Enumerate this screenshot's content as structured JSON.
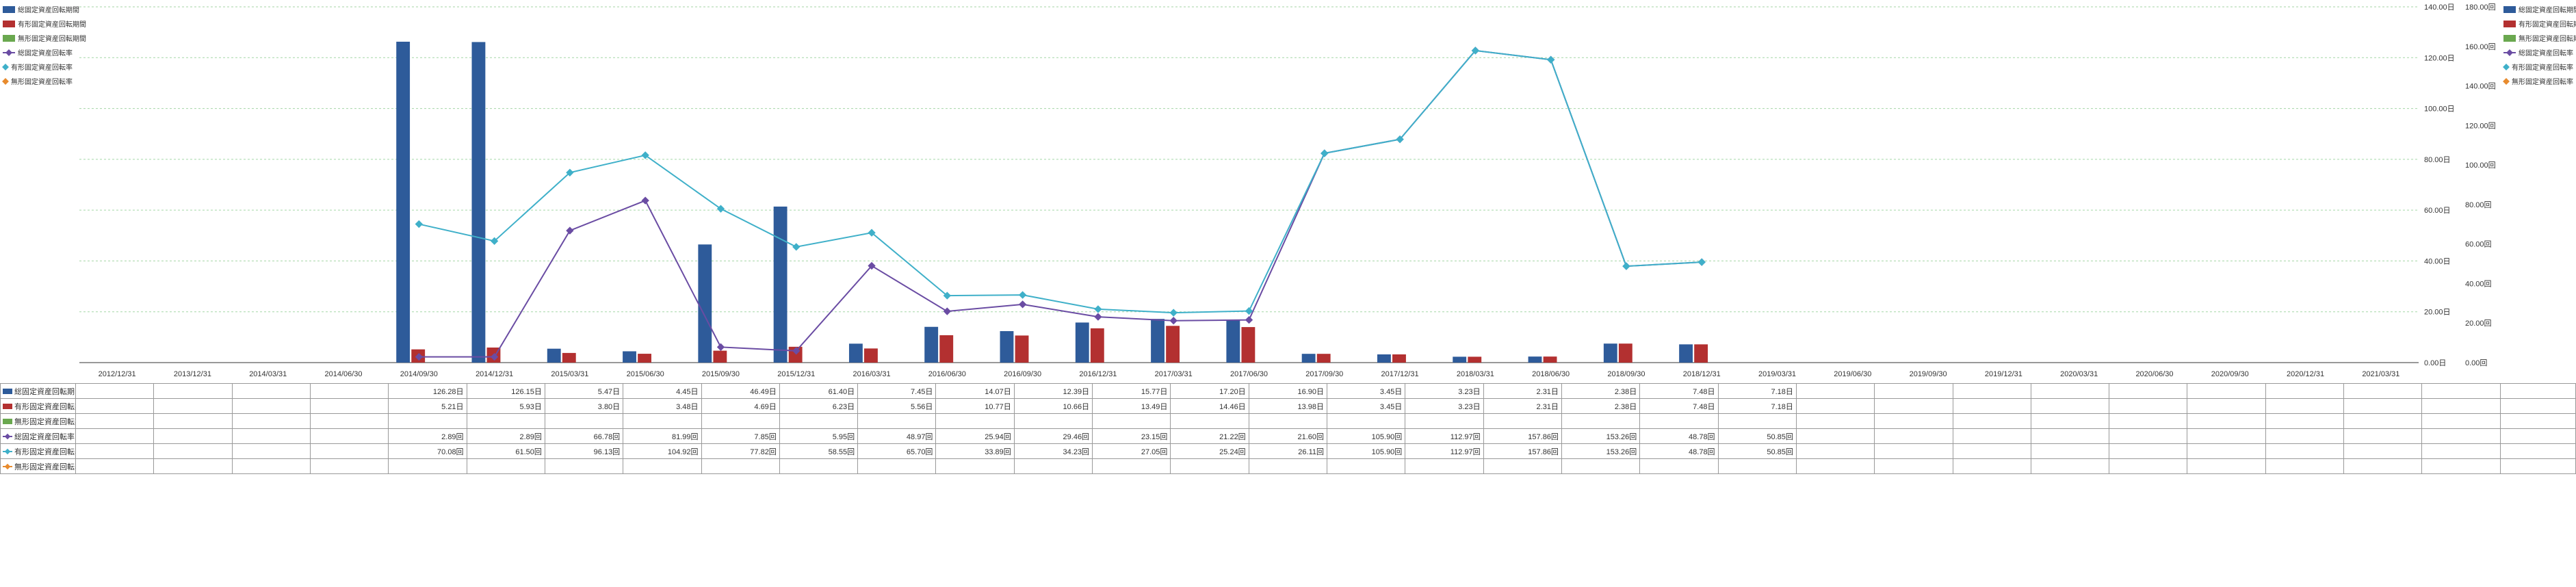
{
  "chart": {
    "type": "combo-bar-line",
    "background_color": "#ffffff",
    "grid_color": "#4caf50",
    "axis_color": "#333333",
    "categories": [
      "2012/12/31",
      "2013/12/31",
      "2014/03/31",
      "2014/06/30",
      "2014/09/30",
      "2014/12/31",
      "2015/03/31",
      "2015/06/30",
      "2015/09/30",
      "2015/12/31",
      "2016/03/31",
      "2016/06/30",
      "2016/09/30",
      "2016/12/31",
      "2017/03/31",
      "2017/06/30",
      "2017/09/30",
      "2017/12/31",
      "2018/03/31",
      "2018/06/30",
      "2018/09/30",
      "2018/12/31",
      "2019/03/31",
      "2019/06/30",
      "2019/09/30",
      "2019/12/31",
      "2020/03/31",
      "2020/06/30",
      "2020/09/30",
      "2020/12/31",
      "2021/03/31"
    ],
    "left_axis": {
      "label_suffix": "日",
      "min": 0,
      "max": 140,
      "step": 20
    },
    "right_axis": {
      "label_suffix": "回",
      "min": 0,
      "max": 180,
      "step": 20
    },
    "series": [
      {
        "key": "s1",
        "name": "総固定資産回転期間",
        "type": "bar",
        "color": "#2e5b9a",
        "axis": "left",
        "data": [
          null,
          null,
          null,
          null,
          126.28,
          126.15,
          5.47,
          4.45,
          46.49,
          61.4,
          7.45,
          14.07,
          12.39,
          15.77,
          17.2,
          16.9,
          3.45,
          3.23,
          2.31,
          2.38,
          7.48,
          7.18,
          null,
          null,
          null,
          null,
          null,
          null,
          null,
          null,
          null
        ]
      },
      {
        "key": "s2",
        "name": "有形固定資産回転期間",
        "type": "bar",
        "color": "#b33030",
        "axis": "left",
        "data": [
          null,
          null,
          null,
          null,
          5.21,
          5.93,
          3.8,
          3.48,
          4.69,
          6.23,
          5.56,
          10.77,
          10.66,
          13.49,
          14.46,
          13.98,
          3.45,
          3.23,
          2.31,
          2.38,
          7.48,
          7.18,
          null,
          null,
          null,
          null,
          null,
          null,
          null,
          null,
          null
        ]
      },
      {
        "key": "s3",
        "name": "無形固定資産回転期間",
        "type": "bar",
        "color": "#6aa84f",
        "axis": "left",
        "data": [
          null,
          null,
          null,
          null,
          null,
          null,
          null,
          null,
          null,
          null,
          null,
          null,
          null,
          null,
          null,
          null,
          null,
          null,
          null,
          null,
          null,
          null,
          null,
          null,
          null,
          null,
          null,
          null,
          null,
          null,
          null
        ]
      },
      {
        "key": "s4",
        "name": "総固定資産回転率",
        "type": "line",
        "color": "#6a4ca3",
        "marker": "diamond",
        "axis": "right",
        "data": [
          null,
          null,
          null,
          null,
          2.89,
          2.89,
          66.78,
          81.99,
          7.85,
          5.95,
          48.97,
          25.94,
          29.46,
          23.15,
          21.22,
          21.6,
          105.9,
          112.97,
          157.86,
          153.26,
          48.78,
          50.85,
          null,
          null,
          null,
          null,
          null,
          null,
          null,
          null,
          null
        ]
      },
      {
        "key": "s5",
        "name": "有形固定資産回転率",
        "type": "line",
        "color": "#3fb0c9",
        "marker": "diamond",
        "axis": "right",
        "data": [
          null,
          null,
          null,
          null,
          70.08,
          61.5,
          96.13,
          104.92,
          77.82,
          58.55,
          65.7,
          33.89,
          34.23,
          27.05,
          25.24,
          26.11,
          105.9,
          112.97,
          157.86,
          153.26,
          48.78,
          50.85,
          null,
          null,
          null,
          null,
          null,
          null,
          null,
          null,
          null
        ]
      },
      {
        "key": "s6",
        "name": "無形固定資産回転率",
        "type": "line",
        "color": "#e88b2e",
        "marker": "diamond",
        "axis": "right",
        "data": [
          null,
          null,
          null,
          null,
          null,
          null,
          null,
          null,
          null,
          null,
          null,
          null,
          null,
          null,
          null,
          null,
          null,
          null,
          null,
          null,
          null,
          null,
          null,
          null,
          null,
          null,
          null,
          null,
          null,
          null,
          null
        ]
      }
    ],
    "table_suffix": {
      "s1": "日",
      "s2": "日",
      "s3": "日",
      "s4": "回",
      "s5": "回",
      "s6": "回"
    }
  }
}
